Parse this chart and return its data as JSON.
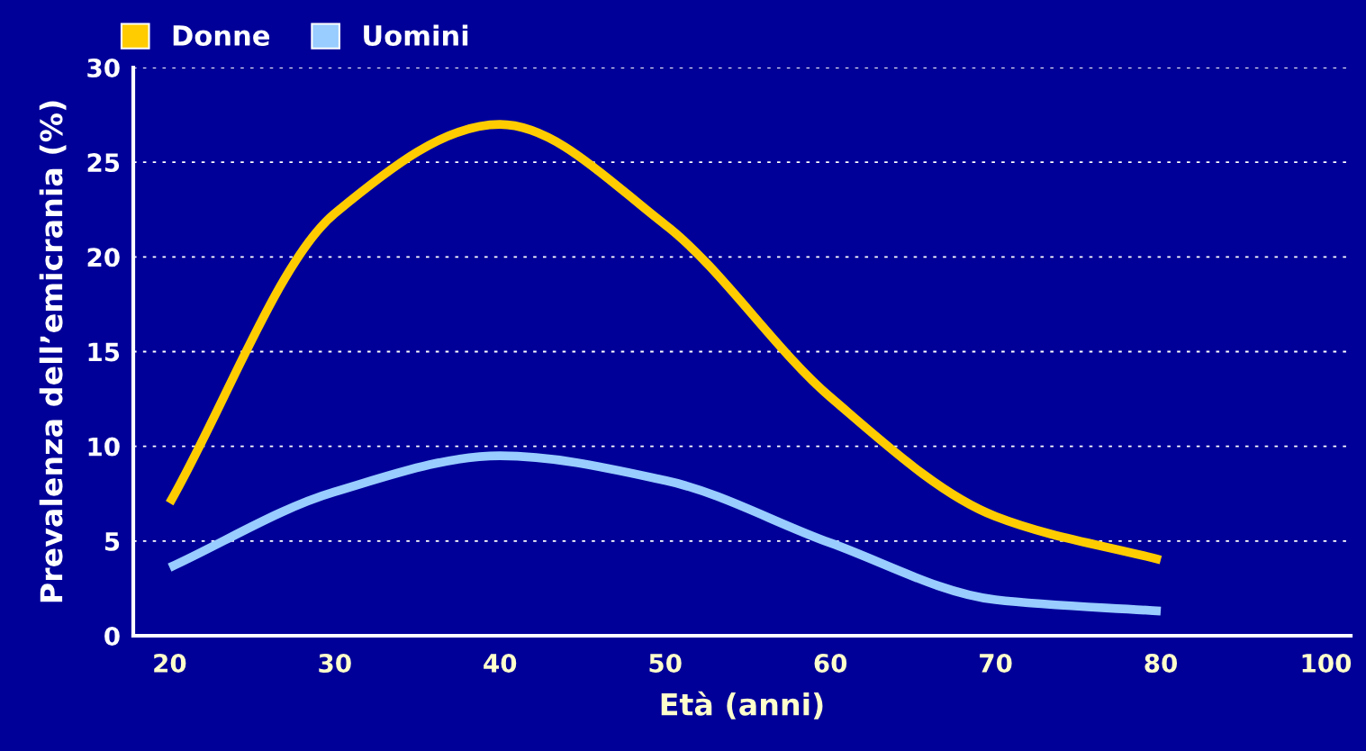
{
  "chart_data": {
    "type": "line",
    "xlabel": "Età (anni)",
    "ylabel": "Prevalenza dell’emicrania (%)",
    "categories": [
      "20",
      "30",
      "40",
      "50",
      "60",
      "70",
      "80",
      "100"
    ],
    "ylim": [
      0,
      30
    ],
    "yticks": [
      0,
      5,
      10,
      15,
      20,
      25,
      30
    ],
    "grid": "y",
    "legend": "top left",
    "line_style": "solid",
    "marker": "none",
    "series": [
      {
        "name": "Donne",
        "color": "#ffcc00",
        "values": [
          7.0,
          22.3,
          27,
          21.7,
          12.6,
          6.3,
          4.0,
          null
        ]
      },
      {
        "name": "Uomini",
        "color": "#99ccff",
        "values": [
          3.6,
          7.6,
          9.5,
          8.2,
          4.9,
          1.9,
          1.3,
          null
        ]
      }
    ]
  }
}
